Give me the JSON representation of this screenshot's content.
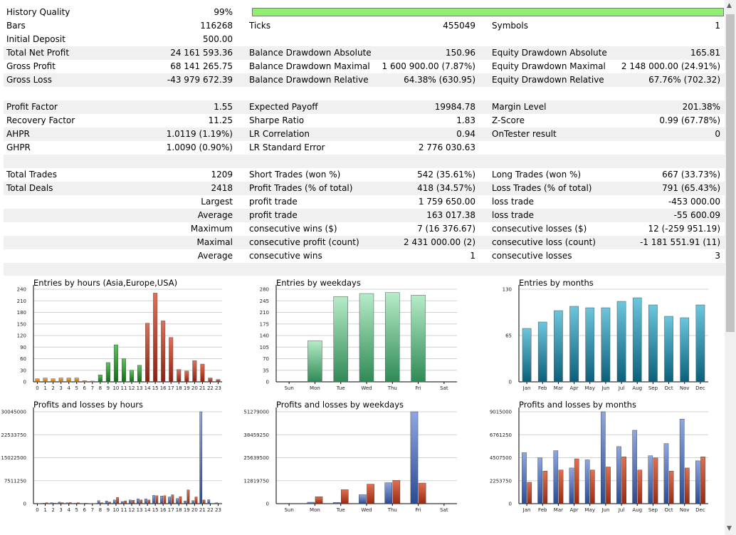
{
  "history_quality": {
    "label": "History Quality",
    "value": "99%",
    "level_percent": 99
  },
  "rows": [
    {
      "y": 11,
      "shade": false,
      "cells": [
        "Bars",
        "116268",
        "Ticks",
        "455049",
        "Symbols",
        "1"
      ]
    },
    {
      "y": 30,
      "shade": false,
      "cells": [
        "Initial Deposit",
        "500.00",
        "",
        "",
        "",
        ""
      ]
    },
    {
      "y": 49,
      "shade": true,
      "cells": [
        "Total Net Profit",
        "24 161 593.36",
        "Balance Drawdown Absolute",
        "150.96",
        "Equity Drawdown Absolute",
        "165.81"
      ]
    },
    {
      "y": 68,
      "shade": false,
      "cells": [
        "Gross Profit",
        "68 141 265.75",
        "Balance Drawdown Maximal",
        "1 600 900.00 (7.87%)",
        "Equity Drawdown Maximal",
        "2 148 000.00 (24.91%)"
      ]
    },
    {
      "y": 87,
      "shade": true,
      "cells": [
        "Gross Loss",
        "-43 979 672.39",
        "Balance Drawdown Relative",
        "64.38% (630.95)",
        "Equity Drawdown Relative",
        "67.76% (702.32)"
      ]
    },
    {
      "y": 106,
      "shade": false,
      "cells": [
        "",
        "",
        "",
        "",
        "",
        ""
      ]
    },
    {
      "y": 125,
      "shade": true,
      "cells": [
        "Profit Factor",
        "1.55",
        "Expected Payoff",
        "19984.78",
        "Margin Level",
        "201.38%"
      ]
    },
    {
      "y": 144,
      "shade": false,
      "cells": [
        "Recovery Factor",
        "11.25",
        "Sharpe Ratio",
        "1.83",
        "Z-Score",
        "0.99 (67.78%)"
      ]
    },
    {
      "y": 163,
      "shade": true,
      "cells": [
        "AHPR",
        "1.0119 (1.19%)",
        "LR Correlation",
        "0.94",
        "OnTester result",
        "0"
      ]
    },
    {
      "y": 182,
      "shade": false,
      "cells": [
        "GHPR",
        "1.0090 (0.90%)",
        "LR Standard Error",
        "2 776 030.63",
        "",
        ""
      ]
    },
    {
      "y": 201,
      "shade": true,
      "cells": [
        "",
        "",
        "",
        "",
        "",
        ""
      ]
    },
    {
      "y": 220,
      "shade": false,
      "cells": [
        "Total Trades",
        "1209",
        "Short Trades (won %)",
        "542 (35.61%)",
        "Long Trades (won %)",
        "667 (33.73%)"
      ]
    },
    {
      "y": 239,
      "shade": true,
      "cells": [
        "Total Deals",
        "2418",
        "Profit Trades (% of total)",
        "418 (34.57%)",
        "Loss Trades (% of total)",
        "791 (65.43%)"
      ]
    },
    {
      "y": 258,
      "shade": false,
      "cells": [
        "",
        "Largest",
        "profit trade",
        "1 759 650.00",
        "loss trade",
        "-453 000.00"
      ]
    },
    {
      "y": 277,
      "shade": true,
      "cells": [
        "",
        "Average",
        "profit trade",
        "163 017.38",
        "loss trade",
        "-55 600.09"
      ]
    },
    {
      "y": 296,
      "shade": false,
      "cells": [
        "",
        "Maximum",
        "consecutive wins ($)",
        "7 (16 376.67)",
        "consecutive losses ($)",
        "12 (-259 951.19)"
      ]
    },
    {
      "y": 315,
      "shade": true,
      "cells": [
        "",
        "Maximal",
        "consecutive profit (count)",
        "2 431 000.00 (2)",
        "consecutive loss (count)",
        "-1 181 551.91 (11)"
      ]
    },
    {
      "y": 334,
      "shade": false,
      "cells": [
        "",
        "Average",
        "consecutive wins",
        "1",
        "consecutive losses",
        "3"
      ]
    },
    {
      "y": 353,
      "shade": true,
      "cells": [
        "",
        "",
        "",
        "",
        "",
        ""
      ]
    }
  ],
  "colors": {
    "hours_bars": [
      "#e08a10",
      "#2e9d2e",
      "#c0402a"
    ],
    "weekday_bar": "#72c994",
    "month_bar": "#1f8ca8",
    "profit_bar": "#4e70b8",
    "loss_bar": "#c0402a",
    "quality_bar": "#90ee70"
  },
  "chart_data": [
    {
      "type": "bar",
      "title": "Entries by hours (Asia,Europe,USA)",
      "categories": [
        "0",
        "1",
        "2",
        "3",
        "4",
        "5",
        "6",
        "7",
        "8",
        "9",
        "10",
        "11",
        "12",
        "13",
        "14",
        "15",
        "16",
        "17",
        "18",
        "19",
        "20",
        "21",
        "22",
        "23"
      ],
      "values": [
        8,
        10,
        8,
        10,
        10,
        10,
        3,
        2,
        18,
        50,
        96,
        60,
        30,
        43,
        152,
        230,
        158,
        115,
        32,
        28,
        55,
        46,
        10,
        6
      ],
      "yticks": [
        "0",
        "30",
        "60",
        "90",
        "120",
        "150",
        "180",
        "210",
        "240"
      ],
      "ylim": [
        0,
        240
      ]
    },
    {
      "type": "bar",
      "title": "Entries by weekdays",
      "categories": [
        "Sun",
        "Mon",
        "Tue",
        "Wed",
        "Thu",
        "Fri",
        "Sat"
      ],
      "values": [
        0,
        124,
        258,
        267,
        270,
        262,
        0
      ],
      "yticks": [
        "0",
        "35",
        "70",
        "105",
        "140",
        "175",
        "210",
        "245",
        "280"
      ],
      "ylim": [
        0,
        280
      ]
    },
    {
      "type": "bar",
      "title": "Entries by months",
      "categories": [
        "Jan",
        "Feb",
        "Mar",
        "Apr",
        "May",
        "Jun",
        "Jul",
        "Aug",
        "Sep",
        "Oct",
        "Nov",
        "Dec"
      ],
      "values": [
        75,
        84,
        100,
        106,
        104,
        104,
        113,
        118,
        108,
        92,
        90,
        108
      ],
      "yticks": [
        "0",
        "65",
        "130"
      ],
      "ylim": [
        0,
        130
      ]
    },
    {
      "type": "bar",
      "title": "Profits and losses by hours",
      "categories": [
        "0",
        "1",
        "2",
        "3",
        "4",
        "5",
        "6",
        "7",
        "8",
        "9",
        "10",
        "11",
        "12",
        "13",
        "14",
        "15",
        "16",
        "17",
        "18",
        "19",
        "20",
        "21",
        "22",
        "23"
      ],
      "series": [
        {
          "values": [
            100000,
            150000,
            300000,
            500000,
            300000,
            200000,
            100000,
            50000,
            1000000,
            900000,
            1200000,
            700000,
            1200000,
            1600000,
            1600000,
            2700000,
            2500000,
            2200000,
            1700000,
            900000,
            1000000,
            30045000,
            1300000,
            300000
          ]
        },
        {
          "values": [
            80000,
            300000,
            200000,
            300000,
            350000,
            300000,
            150000,
            80000,
            300000,
            500000,
            2000000,
            900000,
            1100000,
            1200000,
            1200000,
            2600000,
            2600000,
            2900000,
            2300000,
            4500000,
            2200000,
            1200000,
            100000,
            100000
          ]
        }
      ],
      "yticks": [
        "0",
        "7511250",
        "15022500",
        "22533750",
        "30045000"
      ],
      "ylim": [
        0,
        30045000
      ]
    },
    {
      "type": "bar",
      "title": "Profits and losses by weekdays",
      "categories": [
        "Sun",
        "Mon",
        "Tue",
        "Wed",
        "Thu",
        "Fri",
        "Sat"
      ],
      "series": [
        {
          "values": [
            0,
            800000,
            700000,
            5000000,
            11700000,
            51279000,
            0
          ]
        },
        {
          "values": [
            0,
            3900000,
            7800000,
            10900000,
            13000000,
            11500000,
            0
          ]
        }
      ],
      "yticks": [
        "0",
        "12819750",
        "25639500",
        "38459250",
        "51279000"
      ],
      "ylim": [
        0,
        51279000
      ]
    },
    {
      "type": "bar",
      "title": "Profits and losses by months",
      "categories": [
        "Jan",
        "Feb",
        "Mar",
        "Apr",
        "May",
        "Jun",
        "Jul",
        "Aug",
        "Sep",
        "Oct",
        "Nov",
        "Dec"
      ],
      "series": [
        {
          "values": [
            5000000,
            4500000,
            5200000,
            3500000,
            4300000,
            9015000,
            5600000,
            7200000,
            4700000,
            5900000,
            8300000,
            4200000
          ]
        },
        {
          "values": [
            2100000,
            3200000,
            3300000,
            4400000,
            3300000,
            3600000,
            4600000,
            3300000,
            4500000,
            3200000,
            3500000,
            4600000
          ]
        }
      ],
      "yticks": [
        "0",
        "2253750",
        "4507500",
        "6761250",
        "9015000"
      ],
      "ylim": [
        0,
        9015000
      ]
    }
  ]
}
